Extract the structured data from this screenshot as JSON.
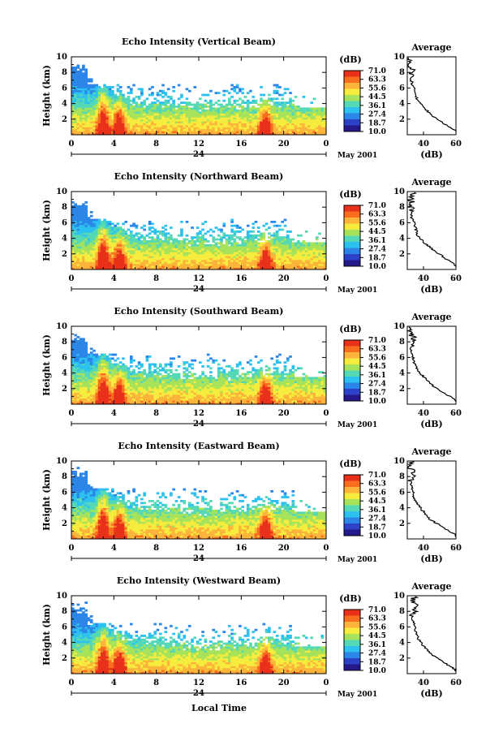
{
  "figure": {
    "panels": [
      {
        "title": "Echo Intensity (Vertical Beam)"
      },
      {
        "title": "Echo Intensity (Northward Beam)"
      },
      {
        "title": "Echo Intensity (Southward Beam)"
      },
      {
        "title": "Echo Intensity (Eastward Beam)"
      },
      {
        "title": "Echo Intensity (Westward Beam)"
      }
    ],
    "ylabel": "Height (km)",
    "y_ticks": [
      "2",
      "4",
      "6",
      "8",
      "10"
    ],
    "x_ticks": [
      "0",
      "4",
      "8",
      "12",
      "16",
      "20",
      "0"
    ],
    "date_day": "24",
    "month_label": "May 2001",
    "xlabel": "Local Time",
    "colorbar": {
      "unit": "(dB)",
      "labels": [
        "71.0",
        "63.3",
        "55.6",
        "44.5",
        "36.1",
        "27.4",
        "18.7",
        "10.0"
      ],
      "colors": [
        "#e8301a",
        "#f86d1e",
        "#fcb43a",
        "#f6ec3e",
        "#a7e35a",
        "#54d8b6",
        "#2cc1ee",
        "#2b86e8",
        "#2d40c8",
        "#25188a"
      ]
    },
    "profile": {
      "title": "Average",
      "xlabel": "(dB)",
      "x_ticks": [
        "40",
        "60"
      ],
      "y_ticks": [
        "2",
        "4",
        "6",
        "8",
        "10"
      ]
    }
  },
  "chart_data": [
    {
      "type": "heatmap",
      "title": "Echo Intensity (Vertical Beam)",
      "xlabel": "",
      "ylabel": "Height (km)",
      "xlim": [
        0,
        24
      ],
      "ylim": [
        0,
        10
      ],
      "zlim": [
        10,
        71
      ],
      "colorbar_unit": "(dB)",
      "note_structures": [
        {
          "x": 3.0,
          "height": 6.0
        },
        {
          "x": 4.5,
          "height": 4.0
        },
        {
          "x": 18.3,
          "height": 3.8
        }
      ],
      "profile": {
        "title": "Average",
        "xlabel": "(dB)",
        "xlim": [
          30,
          60
        ],
        "x": [
          60,
          52,
          45,
          40,
          36,
          35,
          33,
          32,
          33,
          31,
          32
        ],
        "height": [
          0.5,
          1.5,
          2.5,
          3.5,
          4.5,
          5.5,
          6.5,
          7.5,
          8.5,
          9.3,
          10
        ]
      }
    },
    {
      "type": "heatmap",
      "title": "Echo Intensity (Northward Beam)",
      "xlabel": "",
      "ylabel": "Height (km)",
      "xlim": [
        0,
        24
      ],
      "ylim": [
        0,
        10
      ],
      "zlim": [
        10,
        71
      ],
      "colorbar_unit": "(dB)",
      "note_structures": [
        {
          "x": 3.0,
          "height": 6.0
        },
        {
          "x": 4.5,
          "height": 4.0
        },
        {
          "x": 18.3,
          "height": 3.8
        }
      ],
      "profile": {
        "title": "Average",
        "xlabel": "(dB)",
        "xlim": [
          30,
          60
        ],
        "x": [
          60,
          53,
          46,
          40,
          36,
          35,
          33,
          32,
          33,
          32,
          34
        ],
        "height": [
          0.5,
          1.5,
          2.5,
          3.5,
          4.5,
          5.5,
          6.5,
          7.5,
          8.5,
          9.3,
          10
        ]
      }
    },
    {
      "type": "heatmap",
      "title": "Echo Intensity (Southward Beam)",
      "xlabel": "",
      "ylabel": "Height (km)",
      "xlim": [
        0,
        24
      ],
      "ylim": [
        0,
        10
      ],
      "zlim": [
        10,
        71
      ],
      "colorbar_unit": "(dB)",
      "note_structures": [
        {
          "x": 3.0,
          "height": 6.0
        },
        {
          "x": 4.5,
          "height": 4.0
        },
        {
          "x": 18.3,
          "height": 3.8
        }
      ],
      "profile": {
        "title": "Average",
        "xlabel": "(dB)",
        "xlim": [
          30,
          60
        ],
        "x": [
          60,
          52,
          45,
          40,
          36,
          34,
          33,
          32,
          34,
          31,
          32
        ],
        "height": [
          0.5,
          1.5,
          2.5,
          3.5,
          4.5,
          5.5,
          6.5,
          7.5,
          8.5,
          9.3,
          10
        ]
      }
    },
    {
      "type": "heatmap",
      "title": "Echo Intensity (Eastward Beam)",
      "xlabel": "",
      "ylabel": "Height (km)",
      "xlim": [
        0,
        24
      ],
      "ylim": [
        0,
        10
      ],
      "zlim": [
        10,
        71
      ],
      "colorbar_unit": "(dB)",
      "note_structures": [
        {
          "x": 3.0,
          "height": 6.0
        },
        {
          "x": 4.5,
          "height": 4.0
        },
        {
          "x": 18.3,
          "height": 3.8
        }
      ],
      "profile": {
        "title": "Average",
        "xlabel": "(dB)",
        "xlim": [
          30,
          60
        ],
        "x": [
          60,
          52,
          44,
          40,
          36,
          34,
          33,
          32,
          34,
          31,
          33
        ],
        "height": [
          0.5,
          1.5,
          2.5,
          3.5,
          4.5,
          5.5,
          6.5,
          7.5,
          8.5,
          9.3,
          10
        ]
      }
    },
    {
      "type": "heatmap",
      "title": "Echo Intensity (Westward Beam)",
      "xlabel": "Local Time",
      "ylabel": "Height (km)",
      "xlim": [
        0,
        24
      ],
      "ylim": [
        0,
        10
      ],
      "zlim": [
        10,
        71
      ],
      "colorbar_unit": "(dB)",
      "note_structures": [
        {
          "x": 3.0,
          "height": 6.0
        },
        {
          "x": 4.5,
          "height": 4.0
        },
        {
          "x": 18.3,
          "height": 3.8
        }
      ],
      "profile": {
        "title": "Average",
        "xlabel": "(dB)",
        "xlim": [
          30,
          60
        ],
        "x": [
          60,
          52,
          45,
          40,
          37,
          35,
          34,
          33,
          36,
          33,
          35
        ],
        "height": [
          0.5,
          1.5,
          2.5,
          3.5,
          4.5,
          5.5,
          6.5,
          7.5,
          8.5,
          9.3,
          10
        ]
      }
    }
  ]
}
